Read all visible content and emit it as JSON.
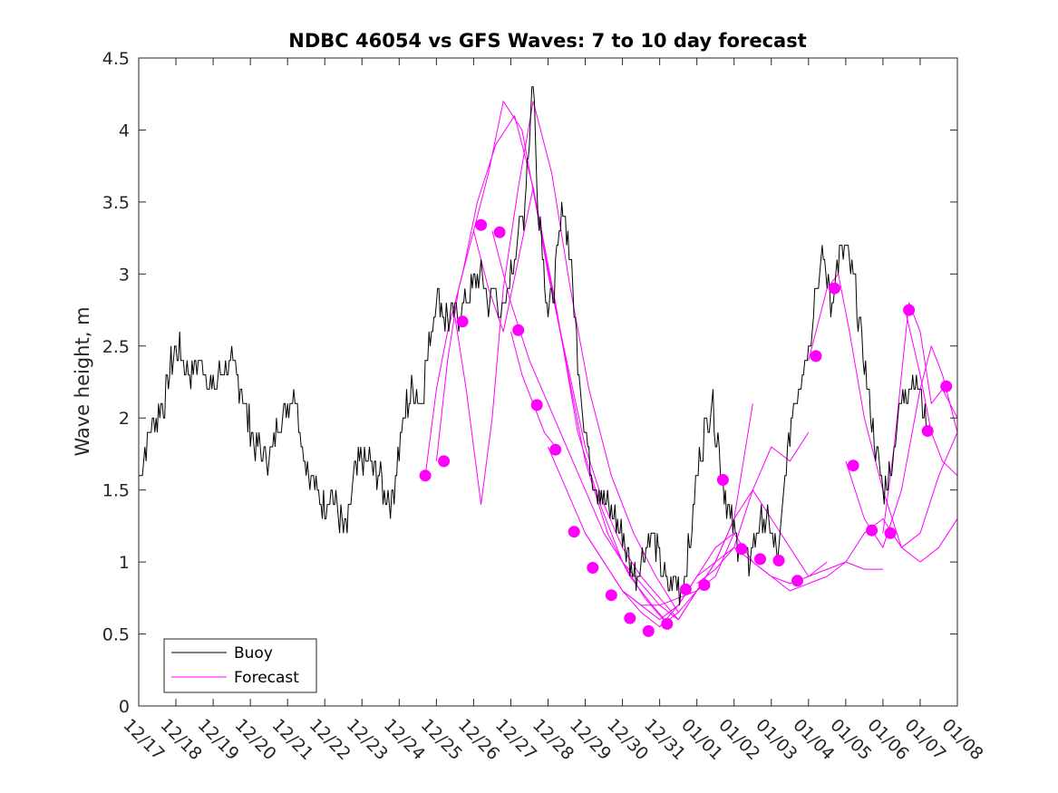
{
  "chart_data": {
    "type": "line",
    "title": "NDBC 46054 vs GFS Waves: 7 to 10 day forecast",
    "xlabel": "",
    "ylabel": "Wave height, m",
    "xlim": [
      0,
      22
    ],
    "ylim": [
      0,
      4.5
    ],
    "yticks": [
      0,
      0.5,
      1,
      1.5,
      2,
      2.5,
      3,
      3.5,
      4,
      4.5
    ],
    "ytick_labels": [
      "0",
      "0.5",
      "1",
      "1.5",
      "2",
      "2.5",
      "3",
      "3.5",
      "4",
      "4.5"
    ],
    "xtick_labels": [
      "12/17",
      "12/18",
      "12/19",
      "12/20",
      "12/21",
      "12/22",
      "12/23",
      "12/24",
      "12/25",
      "12/26",
      "12/27",
      "12/28",
      "12/29",
      "12/30",
      "12/31",
      "01/01",
      "01/02",
      "01/03",
      "01/04",
      "01/05",
      "01/06",
      "01/07",
      "01/08"
    ],
    "legend": {
      "position": "bottom-left",
      "entries": [
        "Buoy",
        "Forecast"
      ]
    },
    "colors": {
      "buoy": "#000000",
      "forecast": "#ff00ff"
    },
    "series": [
      {
        "name": "Buoy",
        "x": [
          0.0,
          0.3,
          0.5,
          0.7,
          0.8,
          1.0,
          1.2,
          1.4,
          1.6,
          1.8,
          2.0,
          2.2,
          2.4,
          2.6,
          2.8,
          3.0,
          3.2,
          3.4,
          3.6,
          3.8,
          4.0,
          4.2,
          4.4,
          4.6,
          4.8,
          5.0,
          5.2,
          5.4,
          5.6,
          5.8,
          6.0,
          6.2,
          6.4,
          6.6,
          6.8,
          7.0,
          7.2,
          7.4,
          7.6,
          7.8,
          8.0,
          8.2,
          8.5,
          8.8,
          9.0,
          9.2,
          9.4,
          9.6,
          9.8,
          10.0,
          10.2,
          10.35,
          10.5,
          10.6,
          10.7,
          10.85,
          11.0,
          11.2,
          11.4,
          11.6,
          11.8,
          12.0,
          12.2,
          12.4,
          12.6,
          12.8,
          13.0,
          13.2,
          13.4,
          13.6,
          13.8,
          14.0,
          14.2,
          14.4,
          14.6,
          14.8,
          15.0,
          15.2,
          15.4,
          15.6,
          15.8,
          16.0,
          16.2,
          16.4,
          16.6,
          16.8,
          17.0,
          17.2,
          17.4,
          17.6,
          17.8,
          18.0,
          18.2,
          18.4,
          18.6,
          18.8,
          19.0,
          19.2,
          19.4,
          19.6,
          19.8,
          20.0,
          20.2,
          20.4,
          20.6,
          20.8,
          21.0,
          21.2
        ],
        "values": [
          1.6,
          1.9,
          2.0,
          2.1,
          2.3,
          2.5,
          2.4,
          2.3,
          2.4,
          2.3,
          2.2,
          2.3,
          2.4,
          2.3,
          2.2,
          1.9,
          1.8,
          1.7,
          1.8,
          2.0,
          2.1,
          2.2,
          1.8,
          1.6,
          1.5,
          1.4,
          1.5,
          1.3,
          1.2,
          1.6,
          1.7,
          1.7,
          1.6,
          1.5,
          1.4,
          1.8,
          2.1,
          2.2,
          2.1,
          2.5,
          2.9,
          2.7,
          2.7,
          2.8,
          2.9,
          3.0,
          2.8,
          2.9,
          2.7,
          3.0,
          3.3,
          3.4,
          4.0,
          4.4,
          3.6,
          3.2,
          2.7,
          3.0,
          3.5,
          3.1,
          2.4,
          1.9,
          1.6,
          1.5,
          1.4,
          1.3,
          1.2,
          1.0,
          0.9,
          1.1,
          1.2,
          1.0,
          0.8,
          0.9,
          0.8,
          1.1,
          1.6,
          1.9,
          2.1,
          1.8,
          1.4,
          1.2,
          1.1,
          1.0,
          1.2,
          1.3,
          1.2,
          1.0,
          1.7,
          2.1,
          2.3,
          2.5,
          2.9,
          3.1,
          2.8,
          3.1,
          3.2,
          3.0,
          2.6,
          2.2,
          1.8,
          1.5,
          1.6,
          2.0,
          2.2,
          2.3,
          2.2,
          1.9
        ]
      },
      {
        "name": "Forecast",
        "lines": [
          {
            "x": [
              7.7,
              8.0,
              8.3,
              8.7,
              9.1,
              9.6,
              10.1,
              10.6,
              11.2,
              11.8,
              12.4,
              13.0,
              13.6,
              14.1
            ],
            "values": [
              1.6,
              2.2,
              2.6,
              3.0,
              3.5,
              3.9,
              4.1,
              3.6,
              2.8,
              1.9,
              1.4,
              1.0,
              0.75,
              0.6
            ]
          },
          {
            "x": [
              8.0,
              8.3,
              8.6,
              9.0,
              9.4,
              9.8,
              10.3,
              10.8,
              11.4,
              12.0,
              12.6,
              13.2,
              13.8,
              14.3
            ],
            "values": [
              1.7,
              2.4,
              2.9,
              3.3,
              3.7,
              4.2,
              4.0,
              3.3,
              2.5,
              1.7,
              1.2,
              0.9,
              0.7,
              0.55
            ]
          },
          {
            "x": [
              8.5,
              8.8,
              9.0,
              9.2,
              9.5,
              9.8,
              10.2,
              10.6,
              11.1,
              11.6,
              12.1,
              12.7,
              13.3,
              13.9,
              14.5
            ],
            "values": [
              2.7,
              2.2,
              1.8,
              1.4,
              2.0,
              2.9,
              3.6,
              4.2,
              3.7,
              2.9,
              2.2,
              1.6,
              1.2,
              0.9,
              0.65
            ]
          },
          {
            "x": [
              9.0,
              9.4,
              9.8,
              10.2,
              10.6,
              11.0,
              11.5,
              12.0,
              12.5,
              13.0,
              13.5,
              14.0,
              14.5,
              15.0,
              15.5
            ],
            "values": [
              3.3,
              2.9,
              2.6,
              3.1,
              3.6,
              3.0,
              2.4,
              1.8,
              1.4,
              1.1,
              0.9,
              0.75,
              0.6,
              0.8,
              1.0
            ]
          },
          {
            "x": [
              9.5,
              10.0,
              10.5,
              11.0,
              11.5,
              12.0,
              12.5,
              13.0,
              13.5,
              14.0,
              14.5,
              15.0,
              15.5,
              16.0
            ],
            "values": [
              3.3,
              2.8,
              2.4,
              2.1,
              1.8,
              1.5,
              1.2,
              1.0,
              0.85,
              0.7,
              0.6,
              0.8,
              0.9,
              1.2
            ]
          },
          {
            "x": [
              10.0,
              10.3,
              10.6,
              10.9,
              11.2
            ],
            "values": [
              2.6,
              2.3,
              2.1,
              1.9,
              1.8
            ]
          },
          {
            "x": [
              11.0,
              11.5,
              12.0,
              12.5,
              13.0,
              13.5,
              14.0,
              14.5,
              15.0,
              15.5,
              16.0,
              16.5
            ],
            "values": [
              1.8,
              1.5,
              1.2,
              1.0,
              0.8,
              0.7,
              0.7,
              0.75,
              0.8,
              1.0,
              1.3,
              2.1
            ]
          },
          {
            "x": [
              12.0,
              12.5,
              13.0,
              13.5,
              14.0,
              14.5,
              15.0,
              15.5,
              16.0,
              16.5,
              17.0,
              17.5,
              18.0
            ],
            "values": [
              1.2,
              1.0,
              0.8,
              0.7,
              0.6,
              0.7,
              0.9,
              1.0,
              1.1,
              1.5,
              1.8,
              1.7,
              1.9
            ]
          },
          {
            "x": [
              13.0,
              13.5,
              14.0,
              14.5,
              15.0,
              15.5,
              16.0,
              16.5,
              17.0,
              17.5,
              18.0,
              18.5
            ],
            "values": [
              0.8,
              0.65,
              0.55,
              0.65,
              0.8,
              1.0,
              1.3,
              1.5,
              1.3,
              1.1,
              0.9,
              1.0
            ]
          },
          {
            "x": [
              14.0,
              14.5,
              15.0,
              15.5,
              16.0,
              16.5,
              17.0,
              17.5,
              18.0,
              18.5,
              19.0,
              19.5,
              20.0
            ],
            "values": [
              0.55,
              0.7,
              0.9,
              1.1,
              1.2,
              1.0,
              0.9,
              0.8,
              0.85,
              0.9,
              1.0,
              0.95,
              0.95
            ]
          },
          {
            "x": [
              15.0,
              15.5,
              16.0,
              16.5,
              17.0,
              17.5,
              18.0,
              18.5,
              19.0,
              19.5,
              20.0,
              20.5,
              21.0,
              21.5,
              22.0
            ],
            "values": [
              0.85,
              0.95,
              1.1,
              1.0,
              0.9,
              0.85,
              0.9,
              0.95,
              1.0,
              1.2,
              1.3,
              1.1,
              1.0,
              1.1,
              1.3
            ]
          },
          {
            "x": [
              18.0,
              18.5,
              18.8,
              19.1,
              19.5,
              20.0,
              20.5,
              21.0,
              21.5,
              22.0
            ],
            "values": [
              2.4,
              2.9,
              3.0,
              2.6,
              2.0,
              1.5,
              1.1,
              1.2,
              1.6,
              1.9
            ]
          },
          {
            "x": [
              19.0,
              19.5,
              20.0,
              20.5,
              21.0,
              21.3,
              21.6,
              22.0
            ],
            "values": [
              1.7,
              1.3,
              1.1,
              1.5,
              2.2,
              2.5,
              2.3,
              1.9
            ]
          },
          {
            "x": [
              20.0,
              20.3,
              20.7,
              21.0,
              21.3,
              21.6,
              22.0
            ],
            "values": [
              1.2,
              1.8,
              2.8,
              2.6,
              2.1,
              2.2,
              2.0
            ]
          },
          {
            "x": [
              20.6,
              21.0,
              21.3,
              21.6,
              22.0
            ],
            "values": [
              2.75,
              2.3,
              1.9,
              1.7,
              1.6
            ]
          }
        ],
        "markers": {
          "x": [
            7.7,
            8.2,
            8.7,
            9.2,
            9.7,
            10.2,
            10.7,
            11.2,
            11.7,
            12.2,
            12.7,
            13.2,
            13.7,
            14.2,
            14.7,
            15.2,
            15.7,
            16.2,
            16.7,
            17.2,
            17.7,
            18.2,
            18.7,
            19.2,
            19.7,
            20.2,
            20.7,
            21.2,
            21.7
          ],
          "values": [
            1.6,
            1.7,
            2.67,
            3.34,
            3.29,
            2.61,
            2.09,
            1.78,
            1.21,
            0.96,
            0.77,
            0.61,
            0.52,
            0.57,
            0.81,
            0.84,
            1.57,
            1.09,
            1.02,
            1.01,
            0.87,
            2.43,
            2.9,
            1.67,
            1.22,
            1.2,
            2.75,
            1.91,
            2.22
          ]
        }
      }
    ]
  }
}
